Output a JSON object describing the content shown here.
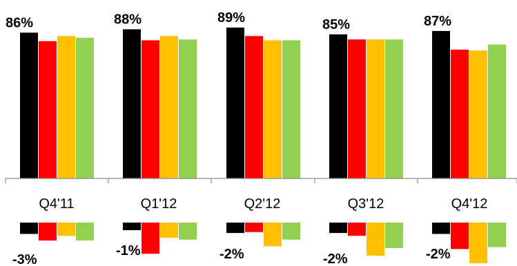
{
  "chart_data": {
    "type": "bar",
    "categories": [
      "Q4'11",
      "Q1'12",
      "Q2'12",
      "Q3'12",
      "Q4'12"
    ],
    "top_labels": [
      "86%",
      "88%",
      "89%",
      "85%",
      "87%"
    ],
    "delta_labels": [
      "-3%",
      "-1%",
      "-2%",
      "-2%",
      "-2%"
    ],
    "colors": [
      "#000000",
      "#ff0000",
      "#ffc000",
      "#92d050"
    ],
    "series": [
      {
        "values": [
          86,
          88,
          89,
          85,
          87
        ]
      },
      {
        "values": [
          81,
          81.5,
          84,
          82,
          76
        ]
      },
      {
        "values": [
          84,
          84,
          81.5,
          82,
          75.5
        ]
      },
      {
        "values": [
          83,
          82,
          81.5,
          82,
          79
        ]
      }
    ],
    "ylim": [
      0,
      89
    ],
    "deltas": [
      [
        -1.2,
        -0.8,
        -1.1,
        -1.1,
        -1.2
      ],
      [
        -1.9,
        -3.3,
        -1.0,
        -1.4,
        -2.8
      ],
      [
        -1.4,
        -1.6,
        -2.5,
        -3.5,
        -4.3
      ],
      [
        -1.9,
        -1.8,
        -1.8,
        -2.7,
        -2.6
      ]
    ],
    "delta_ylim": [
      -4.3,
      0
    ]
  }
}
